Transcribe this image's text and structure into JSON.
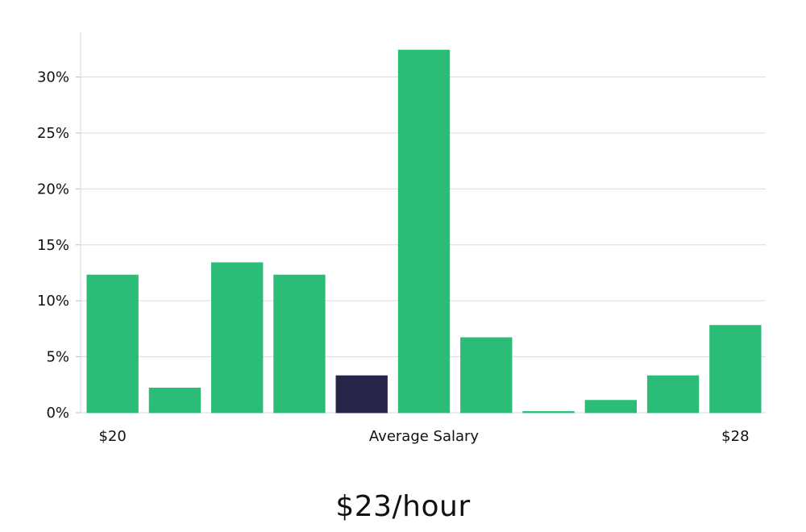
{
  "chart_data": {
    "type": "bar",
    "categories": [
      "$20",
      "",
      "",
      "",
      "",
      "Average Salary",
      "",
      "",
      "",
      "",
      "$28"
    ],
    "values": [
      12.3,
      2.2,
      13.4,
      12.3,
      3.3,
      32.4,
      6.7,
      0.1,
      1.1,
      3.3,
      7.8
    ],
    "highlight_index": 4,
    "ylim": [
      0,
      34
    ],
    "yticks": [
      0,
      5,
      10,
      15,
      20,
      25,
      30
    ],
    "ytick_labels": [
      "0%",
      "5%",
      "10%",
      "15%",
      "20%",
      "25%",
      "30%"
    ],
    "xtick_labels": [
      "$20",
      "Average Salary",
      "$28"
    ],
    "grid": true,
    "colors": {
      "bar": "#2bbd77",
      "highlight": "#27244a"
    }
  },
  "summary": {
    "salary_text": "$23/hour"
  }
}
